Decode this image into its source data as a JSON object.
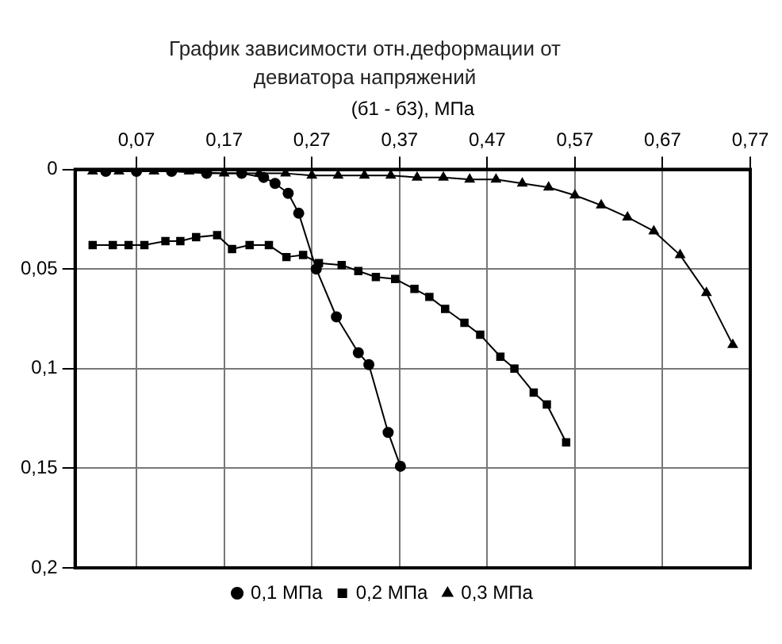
{
  "chart_data": {
    "type": "line",
    "title": "График зависимости отн.деформации от девиатора напряжений",
    "xlabel": "(б1 - б3), МПа",
    "xlim": [
      0,
      0.77
    ],
    "xticks": [
      {
        "value": 0.07,
        "label": "0,07"
      },
      {
        "value": 0.17,
        "label": "0,17"
      },
      {
        "value": 0.27,
        "label": "0,27"
      },
      {
        "value": 0.37,
        "label": "0,37"
      },
      {
        "value": 0.47,
        "label": "0,47"
      },
      {
        "value": 0.57,
        "label": "0,57"
      },
      {
        "value": 0.67,
        "label": "0,67"
      },
      {
        "value": 0.77,
        "label": "0,77"
      }
    ],
    "ylim": [
      0.2,
      0
    ],
    "yticks": [
      {
        "value": 0,
        "label": "0"
      },
      {
        "value": 0.05,
        "label": "0,05"
      },
      {
        "value": 0.1,
        "label": "0,1"
      },
      {
        "value": 0.15,
        "label": "0,15"
      },
      {
        "value": 0.2,
        "label": "0,2"
      }
    ],
    "grid": true,
    "legend": "bottom",
    "line_style": "solid",
    "series": [
      {
        "name": "0,1 МПа",
        "color": "#000000",
        "marker": "circle",
        "x": [
          0.035,
          0.07,
          0.11,
          0.15,
          0.19,
          0.215,
          0.228,
          0.243,
          0.255,
          0.275,
          0.298,
          0.323,
          0.335,
          0.357,
          0.371
        ],
        "values": [
          0.001,
          0.001,
          0.001,
          0.002,
          0.002,
          0.004,
          0.007,
          0.012,
          0.022,
          0.05,
          0.074,
          0.092,
          0.098,
          0.132,
          0.149
        ]
      },
      {
        "name": "0,2 МПа",
        "color": "#000000",
        "marker": "square",
        "x": [
          0.02,
          0.043,
          0.061,
          0.079,
          0.103,
          0.12,
          0.138,
          0.162,
          0.179,
          0.199,
          0.221,
          0.241,
          0.26,
          0.278,
          0.304,
          0.323,
          0.343,
          0.365,
          0.387,
          0.404,
          0.422,
          0.444,
          0.462,
          0.485,
          0.501,
          0.523,
          0.538,
          0.56
        ],
        "values": [
          0.038,
          0.038,
          0.038,
          0.038,
          0.036,
          0.036,
          0.034,
          0.033,
          0.04,
          0.038,
          0.038,
          0.044,
          0.043,
          0.047,
          0.048,
          0.051,
          0.054,
          0.055,
          0.06,
          0.064,
          0.07,
          0.077,
          0.083,
          0.094,
          0.1,
          0.112,
          0.118,
          0.137
        ]
      },
      {
        "name": "0,3 МПа",
        "color": "#000000",
        "marker": "triangle",
        "x": [
          0.02,
          0.05,
          0.09,
          0.13,
          0.17,
          0.21,
          0.24,
          0.27,
          0.3,
          0.33,
          0.36,
          0.39,
          0.42,
          0.45,
          0.48,
          0.51,
          0.54,
          0.57,
          0.6,
          0.63,
          0.66,
          0.69,
          0.72,
          0.75
        ],
        "values": [
          0.001,
          0.001,
          0.001,
          0.001,
          0.002,
          0.002,
          0.002,
          0.003,
          0.003,
          0.003,
          0.003,
          0.004,
          0.004,
          0.005,
          0.005,
          0.007,
          0.009,
          0.013,
          0.018,
          0.024,
          0.031,
          0.043,
          0.062,
          0.088
        ]
      }
    ]
  }
}
